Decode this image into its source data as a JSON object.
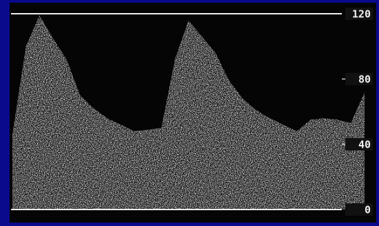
{
  "chart_data": {
    "type": "area",
    "color": "#d8d8d8",
    "categories": [
      null,
      null,
      null,
      null,
      null,
      null,
      null,
      null,
      null,
      null,
      null,
      null,
      null,
      null,
      null,
      null,
      null,
      null,
      null,
      null,
      null,
      null,
      null,
      null,
      null,
      null,
      null
    ],
    "values": [
      46,
      100,
      119,
      105,
      92,
      70,
      62,
      56,
      52,
      48,
      49,
      50,
      92,
      116,
      106,
      96,
      79,
      68,
      61,
      56,
      52,
      48,
      55,
      56,
      55,
      53,
      72
    ],
    "ylim": [
      0,
      120
    ],
    "yticks": [
      0,
      40,
      80,
      120
    ]
  }
}
